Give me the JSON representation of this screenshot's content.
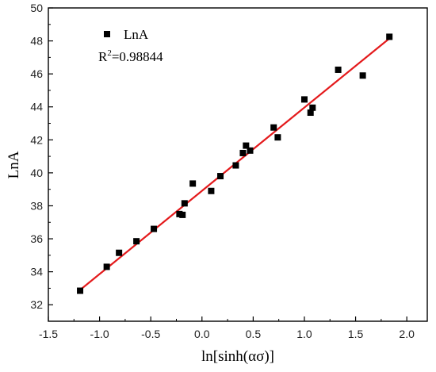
{
  "chart_data": {
    "type": "scatter",
    "title": "",
    "xlabel": "ln[sinh(ασ)]",
    "ylabel": "LnA",
    "xlim": [
      -1.5,
      2.2
    ],
    "ylim": [
      31,
      50
    ],
    "x_ticks": [
      -1.5,
      -1.0,
      -0.5,
      0.0,
      0.5,
      1.0,
      1.5,
      2.0
    ],
    "x_tick_labels": [
      "-1.5",
      "-1.0",
      "-0.5",
      "0.0",
      "0.5",
      "1.0",
      "1.5",
      "2.0"
    ],
    "y_ticks": [
      32,
      34,
      36,
      38,
      40,
      42,
      44,
      46,
      48,
      50
    ],
    "y_tick_labels": [
      "32",
      "34",
      "36",
      "38",
      "40",
      "42",
      "44",
      "46",
      "48",
      "50"
    ],
    "grid": false,
    "legend": {
      "placement": "top-left",
      "entries": [
        "LnA"
      ],
      "annotation_base": "R",
      "annotation_sup": "2",
      "annotation_value": "=0.98844"
    },
    "series": [
      {
        "name": "LnA",
        "marker": "square",
        "color": "#000000",
        "points": [
          [
            -1.19,
            32.85
          ],
          [
            -0.93,
            34.3
          ],
          [
            -0.81,
            35.15
          ],
          [
            -0.64,
            35.85
          ],
          [
            -0.47,
            36.6
          ],
          [
            -0.22,
            37.5
          ],
          [
            -0.19,
            37.45
          ],
          [
            -0.17,
            38.15
          ],
          [
            -0.09,
            39.35
          ],
          [
            0.09,
            38.9
          ],
          [
            0.18,
            39.8
          ],
          [
            0.33,
            40.45
          ],
          [
            0.4,
            41.2
          ],
          [
            0.43,
            41.65
          ],
          [
            0.47,
            41.35
          ],
          [
            0.7,
            42.75
          ],
          [
            0.74,
            42.15
          ],
          [
            1.0,
            44.45
          ],
          [
            1.06,
            43.65
          ],
          [
            1.08,
            43.95
          ],
          [
            1.33,
            46.25
          ],
          [
            1.57,
            45.9
          ],
          [
            1.83,
            48.25
          ]
        ]
      },
      {
        "name": "",
        "type": "line",
        "color": "#e41a1c",
        "points": [
          [
            -1.19,
            32.9
          ],
          [
            1.83,
            48.15
          ]
        ]
      }
    ]
  }
}
